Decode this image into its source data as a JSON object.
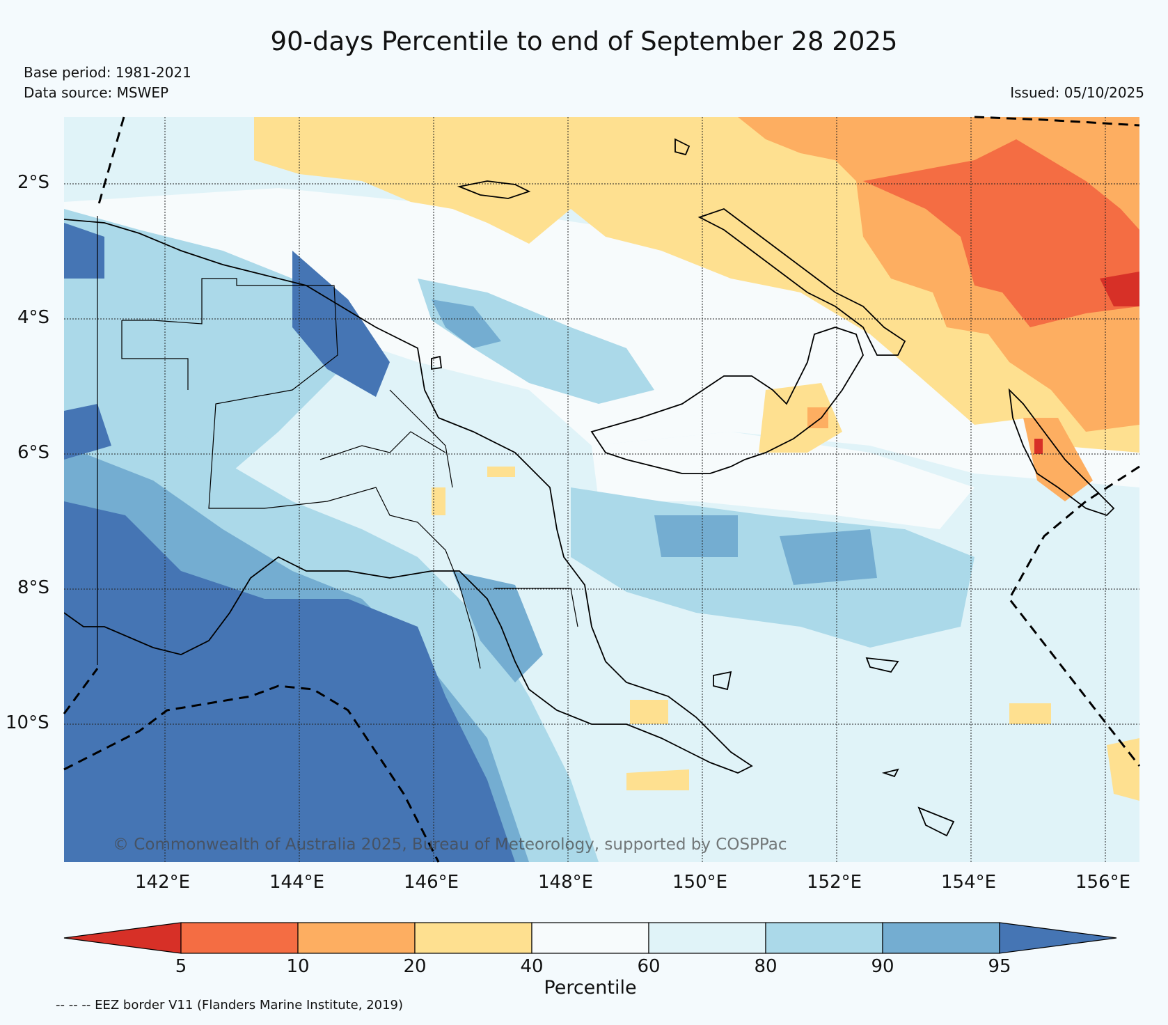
{
  "title": "90-days Percentile to end of September 28 2025",
  "base_period": "Base period: 1981-2021",
  "data_source": "Data source: MSWEP",
  "issued": "Issued: 05/10/2025",
  "copyright": "© Commonwealth of Australia 2025, Bureau of Meteorology, supported by COSPPac",
  "eez_note": "-- -- -- EEZ border V11 (Flanders Marine Institute, 2019)",
  "lat_labels": [
    "2°S",
    "4°S",
    "6°S",
    "8°S",
    "10°S"
  ],
  "lon_labels": [
    "142°E",
    "144°E",
    "146°E",
    "148°E",
    "150°E",
    "152°E",
    "154°E",
    "156°E"
  ],
  "colorbar": {
    "label": "Percentile",
    "ticks": [
      "5",
      "10",
      "20",
      "40",
      "60",
      "80",
      "90",
      "95"
    ],
    "colors": [
      "#d73027",
      "#f46d43",
      "#fdae61",
      "#fee090",
      "#f7fbfc",
      "#e0f3f8",
      "#abd9e9",
      "#74add1",
      "#4575b4"
    ]
  },
  "palette": {
    "dry_extreme": "#d73027",
    "very_dry": "#f46d43",
    "dry": "#fdae61",
    "moderately_dry": "#fee090",
    "near_normal": "#f7fbfc",
    "moderately_wet": "#e0f3f8",
    "wet": "#abd9e9",
    "very_wet": "#74add1",
    "wet_extreme": "#4575b4"
  }
}
